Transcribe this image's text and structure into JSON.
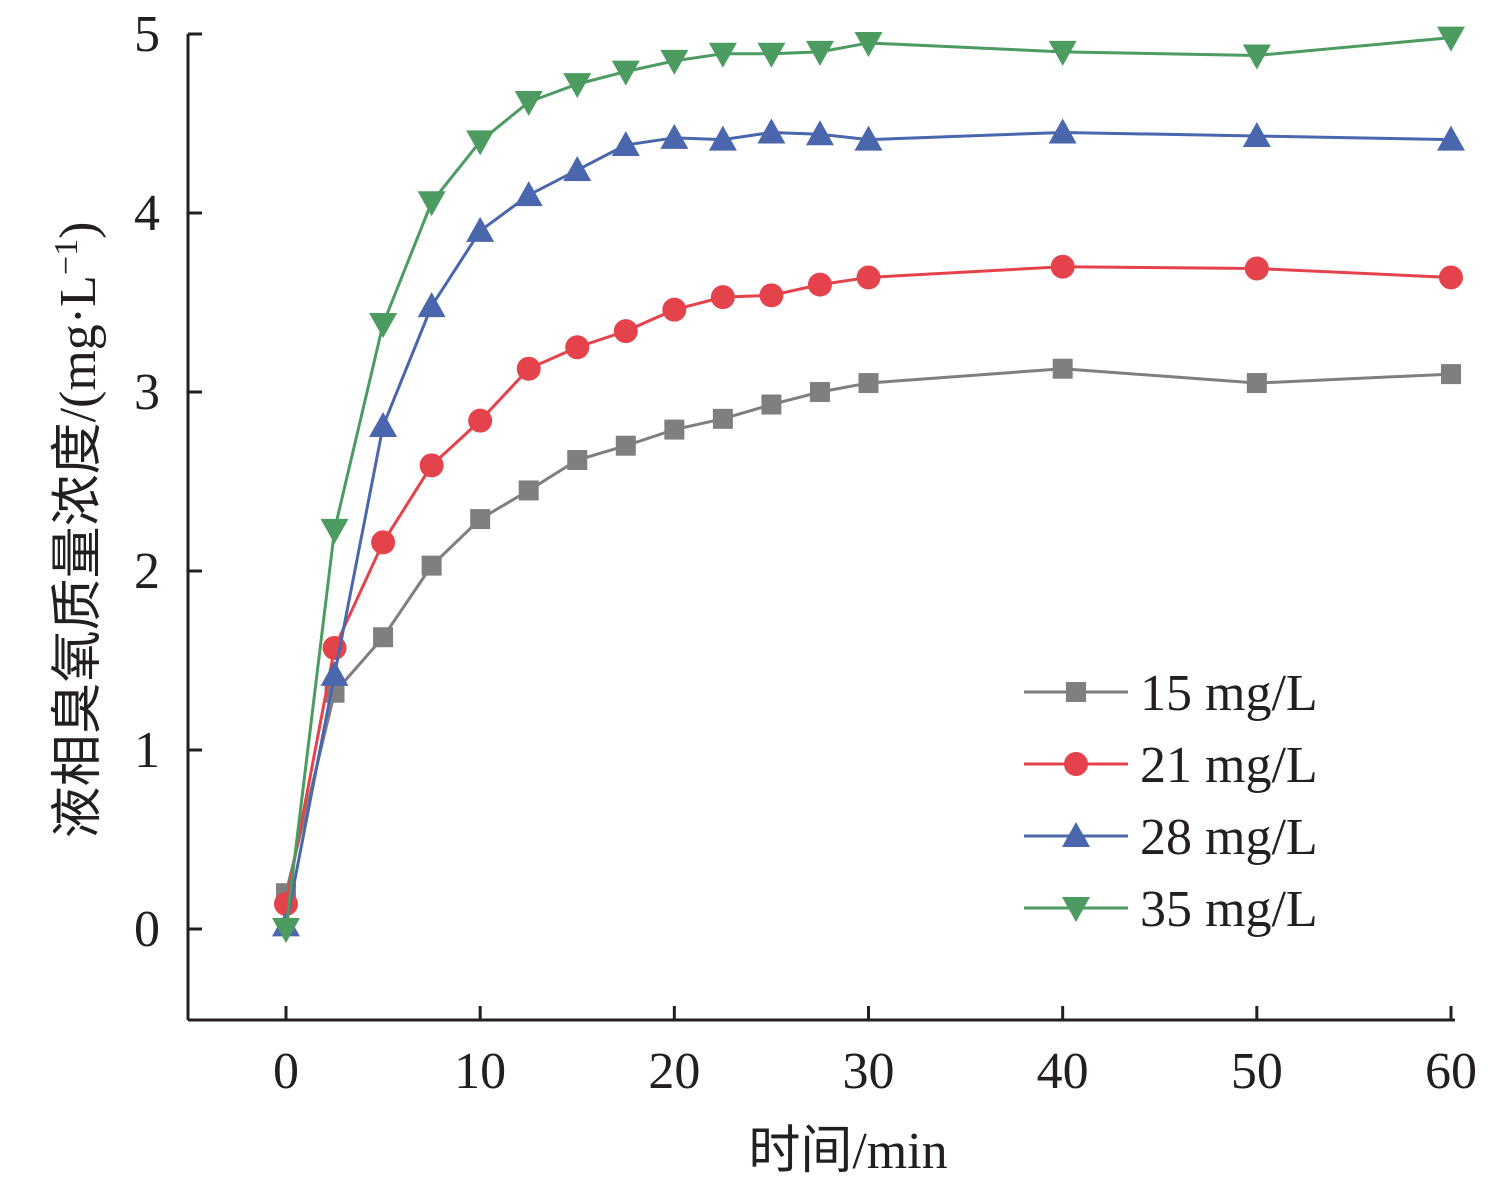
{
  "chart_data": {
    "type": "line",
    "title": "",
    "xlabel": "时间/min",
    "ylabel": "液相臭氧质量浓度/(mg·L",
    "ylabel_sup": "−1",
    "ylabel_close": ")",
    "xlim": [
      -5,
      60
    ],
    "ylim": [
      -0.5,
      5
    ],
    "xticks": [
      0,
      10,
      20,
      30,
      40,
      50,
      60
    ],
    "yticks": [
      0,
      1,
      2,
      3,
      4,
      5
    ],
    "x": [
      0,
      2.5,
      5,
      7.5,
      10,
      12.5,
      15,
      17.5,
      20,
      22.5,
      25,
      27.5,
      30,
      40,
      50,
      60
    ],
    "legend_position": "lower-right",
    "series": [
      {
        "name": "15 mg/L",
        "marker": "square",
        "color": "#7f7f7f",
        "values": [
          0.2,
          1.32,
          1.63,
          2.03,
          2.29,
          2.45,
          2.62,
          2.7,
          2.79,
          2.85,
          2.93,
          3.0,
          3.05,
          3.13,
          3.05,
          3.1
        ]
      },
      {
        "name": "21 mg/L",
        "marker": "circle",
        "color": "#e4434b",
        "values": [
          0.14,
          1.57,
          2.16,
          2.59,
          2.84,
          3.13,
          3.25,
          3.34,
          3.46,
          3.53,
          3.54,
          3.6,
          3.64,
          3.7,
          3.69,
          3.64
        ]
      },
      {
        "name": "28 mg/L",
        "marker": "triangle-up",
        "color": "#4a66ad",
        "values": [
          0.02,
          1.42,
          2.81,
          3.48,
          3.9,
          4.1,
          4.24,
          4.38,
          4.42,
          4.41,
          4.45,
          4.44,
          4.41,
          4.45,
          4.43,
          4.41
        ]
      },
      {
        "name": "35 mg/L",
        "marker": "triangle-down",
        "color": "#4c9b61",
        "values": [
          0.0,
          2.23,
          3.38,
          4.06,
          4.4,
          4.62,
          4.72,
          4.79,
          4.85,
          4.89,
          4.89,
          4.9,
          4.95,
          4.9,
          4.88,
          4.98
        ]
      }
    ]
  }
}
